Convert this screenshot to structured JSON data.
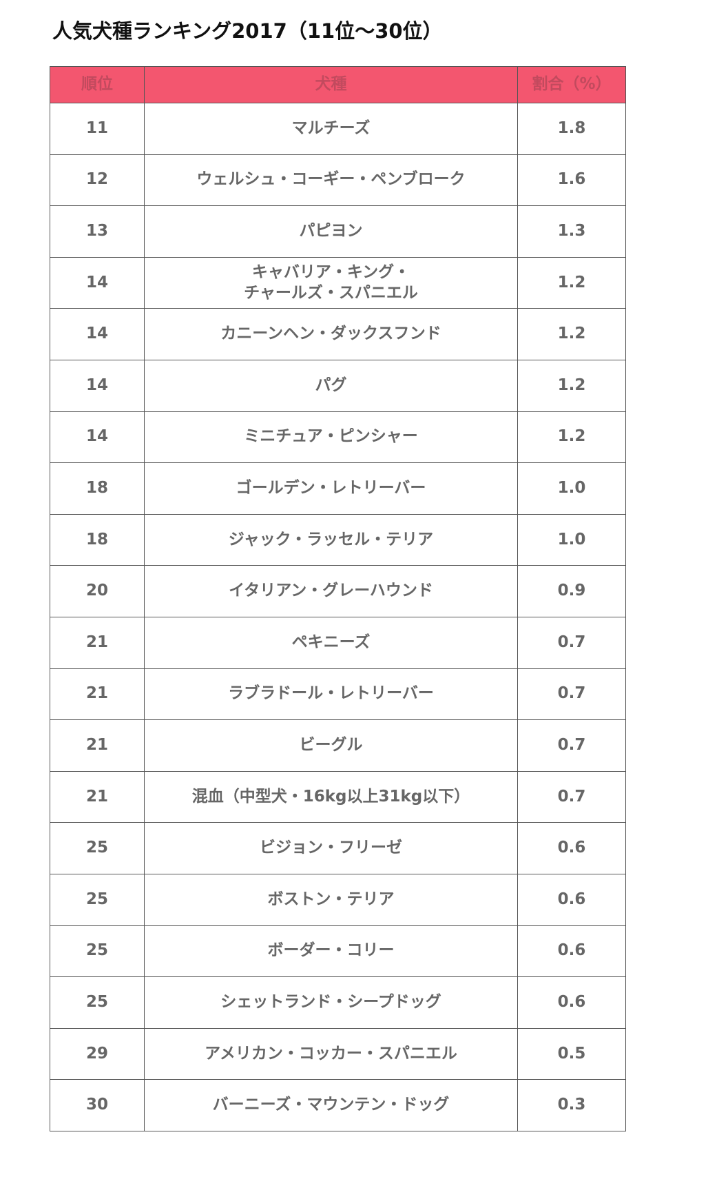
{
  "title": "人気犬種ランキング2017（11位～30位）",
  "table": {
    "header": [
      "順位",
      "犬種",
      "割合（%）"
    ],
    "rows": [
      [
        "11",
        "マルチーズ",
        "1.8"
      ],
      [
        "12",
        "ウェルシュ・コーギー・ペンブローク",
        "1.6"
      ],
      [
        "13",
        "パピヨン",
        "1.3"
      ],
      [
        "14",
        "キャバリア・キング・\nチャールズ・スパニエル",
        "1.2"
      ],
      [
        "14",
        "カニーンヘン・ダックスフンド",
        "1.2"
      ],
      [
        "14",
        "パグ",
        "1.2"
      ],
      [
        "14",
        "ミニチュア・ピンシャー",
        "1.2"
      ],
      [
        "18",
        "ゴールデン・レトリーバー",
        "1.0"
      ],
      [
        "18",
        "ジャック・ラッセル・テリア",
        "1.0"
      ],
      [
        "20",
        "イタリアン・グレーハウンド",
        "0.9"
      ],
      [
        "21",
        "ペキニーズ",
        "0.7"
      ],
      [
        "21",
        "ラブラドール・レトリーバー",
        "0.7"
      ],
      [
        "21",
        "ビーグル",
        "0.7"
      ],
      [
        "21",
        "混血（中型犬・16kg以上31kg以下）",
        "0.7"
      ],
      [
        "25",
        "ビジョン・フリーゼ",
        "0.6"
      ],
      [
        "25",
        "ボストン・テリア",
        "0.6"
      ],
      [
        "25",
        "ボーダー・コリー",
        "0.6"
      ],
      [
        "25",
        "シェットランド・シープドッグ",
        "0.6"
      ],
      [
        "29",
        "アメリカン・コッカー・スパニエル",
        "0.5"
      ],
      [
        "30",
        "バーニーズ・マウンテン・ドッグ",
        "0.3"
      ]
    ]
  }
}
